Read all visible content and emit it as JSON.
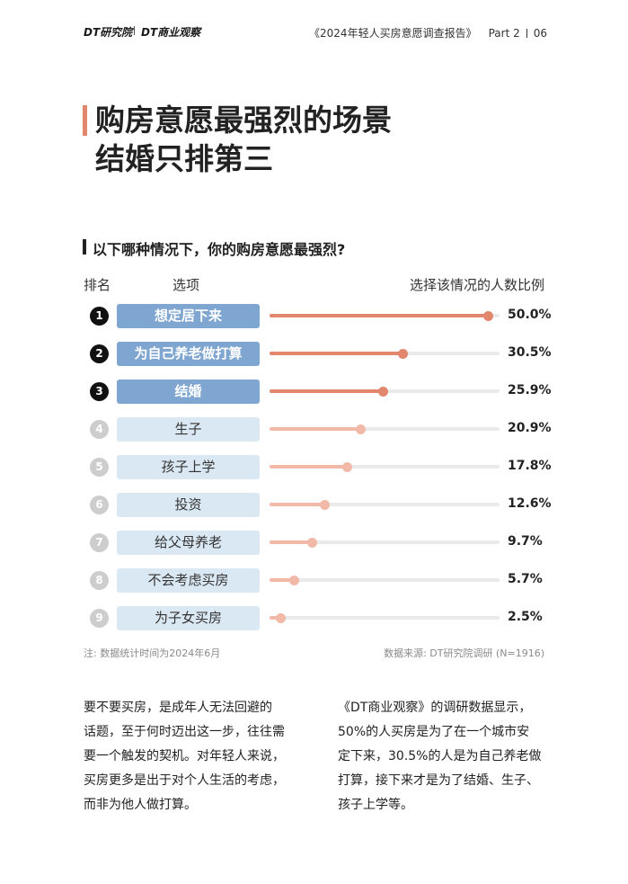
{
  "header": {
    "logo_left": "DT研究院",
    "logo_right": "DT商业观察",
    "report": "《2024年轻人买房意愿调查报告》",
    "part": "Part 2",
    "page": "06"
  },
  "title": {
    "line1": "购房意愿最强烈的场景",
    "line2": "结婚只排第三"
  },
  "question": "以下哪种情况下，你的购房意愿最强烈?",
  "columns": {
    "rank": "排名",
    "option": "选项",
    "ratio": "选择该情况的人数比例"
  },
  "chart_data": {
    "type": "bar",
    "title": "以下哪种情况下，你的购房意愿最强烈?",
    "ylabel": "选择该情况的人数比例",
    "ylim": [
      0,
      52.5
    ],
    "categories": [
      "想定居下来",
      "为自己养老做打算",
      "结婚",
      "生子",
      "孩子上学",
      "投资",
      "给父母养老",
      "不会考虑买房",
      "为子女买房"
    ],
    "ranks": [
      "1",
      "2",
      "3",
      "4",
      "5",
      "6",
      "7",
      "8",
      "9"
    ],
    "values": [
      50.0,
      30.5,
      25.9,
      20.9,
      17.8,
      12.6,
      9.7,
      5.7,
      2.5
    ],
    "labels": [
      "50.0%",
      "30.5%",
      "25.9%",
      "20.9%",
      "17.8%",
      "12.6%",
      "9.7%",
      "5.7%",
      "2.5%"
    ],
    "highlight_count": 3,
    "colors": {
      "top_rank": "#111111",
      "top_option_bg": "#7fa6d0",
      "top_option_text": "#ffffff",
      "top_bar": "#e2876d",
      "rest_rank": "#cdcdcd",
      "rest_option_bg": "#dae8f3",
      "rest_option_text": "#333333",
      "rest_bar": "#f2b9a8",
      "track": "#eaeaea"
    }
  },
  "notes": {
    "left": "注: 数据统计时间为2024年6月",
    "right": "数据来源: DT研究院调研 (N=1916)"
  },
  "body": {
    "left": [
      "要不要买房，是成年人无法回避的",
      "话题，至于何时迈出这一步，往往需",
      "要一个触发的契机。对年轻人来说，",
      "买房更多是出于对个人生活的考虑，",
      "而非为他人做打算。"
    ],
    "right": [
      "《DT商业观察》的调研数据显示，",
      "50%的人买房是为了在一个城市安",
      "定下来，30.5%的人是为自己养老做",
      "打算，接下来才是为了结婚、生子、",
      "孩子上学等。"
    ]
  }
}
